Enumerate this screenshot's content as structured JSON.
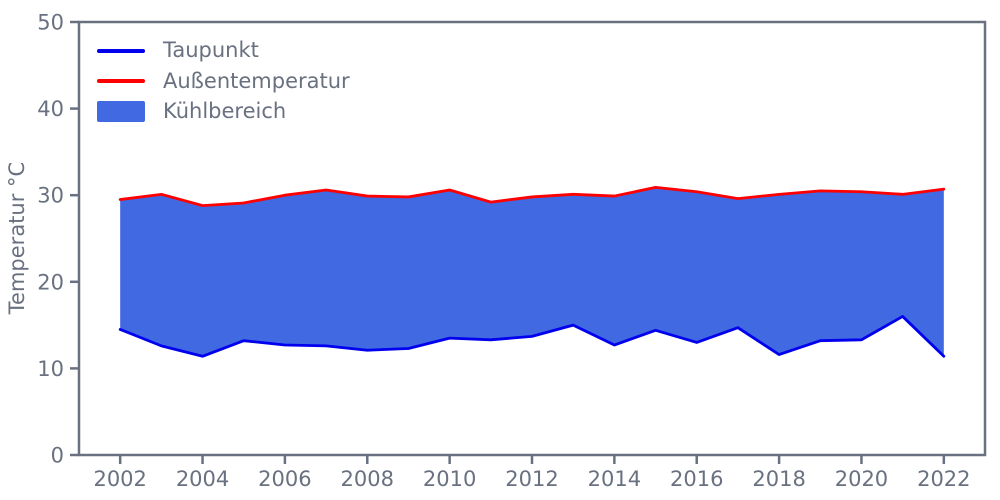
{
  "figure": {
    "background": "#ffffff",
    "axis_color": "#697180",
    "text_color": "#697180"
  },
  "chart_data": {
    "type": "area",
    "title": "",
    "xlabel": "",
    "ylabel": "Temperatur °C",
    "x": [
      2002,
      2003,
      2004,
      2005,
      2006,
      2007,
      2008,
      2009,
      2010,
      2011,
      2012,
      2013,
      2014,
      2015,
      2016,
      2017,
      2018,
      2019,
      2020,
      2021,
      2022
    ],
    "series": [
      {
        "name": "Taupunkt",
        "role": "lower",
        "color": "#0000ee",
        "values": [
          14.5,
          12.6,
          11.4,
          13.2,
          12.7,
          12.6,
          12.1,
          12.3,
          13.5,
          13.3,
          13.7,
          15.0,
          12.7,
          14.4,
          13.0,
          14.7,
          11.6,
          13.2,
          13.3,
          16.0,
          11.4
        ]
      },
      {
        "name": "Außentemperatur",
        "role": "upper",
        "color": "#ff0000",
        "values": [
          29.5,
          30.1,
          28.8,
          29.1,
          30.0,
          30.6,
          29.9,
          29.8,
          30.6,
          29.2,
          29.8,
          30.1,
          29.9,
          30.9,
          30.4,
          29.6,
          30.1,
          30.5,
          30.4,
          30.1,
          30.7
        ]
      },
      {
        "name": "Kühlbereich",
        "role": "fill-between",
        "color": "#4169e1"
      }
    ],
    "xlim": [
      2001,
      2023
    ],
    "ylim": [
      0,
      50
    ],
    "xticks": [
      2002,
      2004,
      2006,
      2008,
      2010,
      2012,
      2014,
      2016,
      2018,
      2020,
      2022
    ],
    "yticks": [
      0,
      10,
      20,
      30,
      40,
      50
    ],
    "grid": false,
    "legend_position": "upper left"
  },
  "legend": {
    "items": [
      {
        "label": "Taupunkt",
        "type": "line",
        "color": "#0000ee"
      },
      {
        "label": "Außentemperatur",
        "type": "line",
        "color": "#ff0000"
      },
      {
        "label": "Kühlbereich",
        "type": "patch",
        "color": "#4169e1"
      }
    ]
  }
}
